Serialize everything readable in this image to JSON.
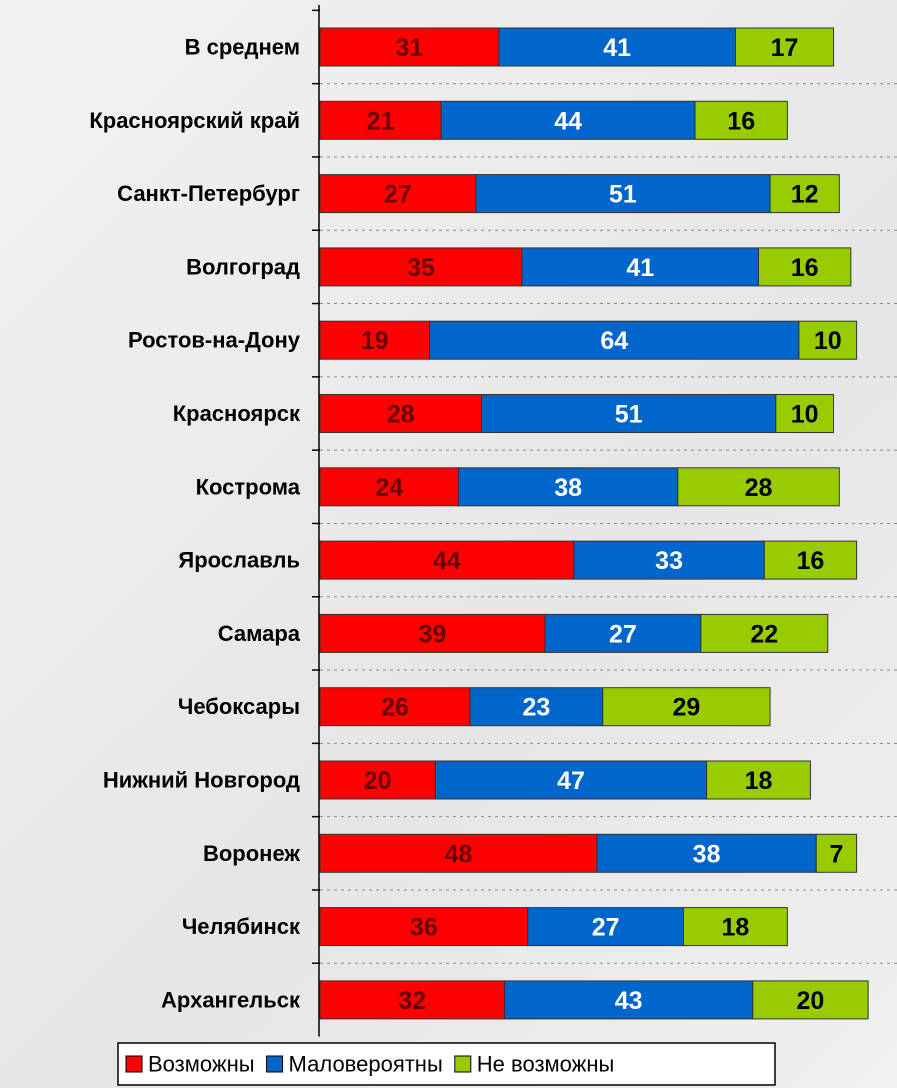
{
  "chart_data": {
    "type": "stacked_barh",
    "categories": [
      "В среднем",
      "Красноярский край",
      "Санкт-Петербург",
      "Волгоград",
      "Ростов-на-Дону",
      "Красноярск",
      "Кострома",
      "Ярославль",
      "Самара",
      "Чебоксары",
      "Нижний Новгород",
      "Воронеж",
      "Челябинск",
      "Архангельск"
    ],
    "series": [
      {
        "name": "Возможны",
        "color": "#ff0000",
        "values": [
          31,
          21,
          27,
          35,
          19,
          28,
          24,
          44,
          39,
          26,
          20,
          48,
          36,
          32
        ]
      },
      {
        "name": "Маловероятны",
        "color": "#0066cc",
        "values": [
          41,
          44,
          51,
          41,
          64,
          51,
          38,
          33,
          27,
          23,
          47,
          38,
          27,
          43
        ]
      },
      {
        "name": "Не возможны",
        "color": "#99cc00",
        "values": [
          17,
          16,
          12,
          16,
          10,
          10,
          28,
          16,
          22,
          29,
          18,
          7,
          18,
          20
        ]
      }
    ],
    "xlim": [
      0,
      100
    ],
    "legend": "bottom"
  }
}
